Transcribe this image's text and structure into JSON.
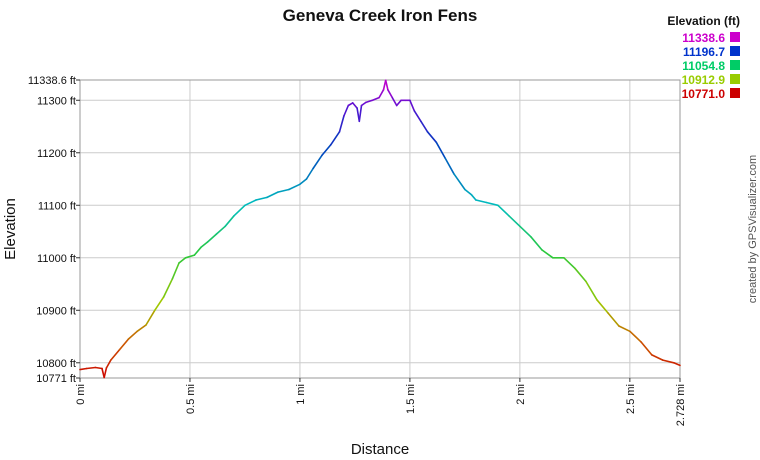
{
  "chart_data": {
    "type": "line",
    "title": "Geneva Creek Iron Fens",
    "xlabel": "Distance",
    "ylabel": "Elevation",
    "xlim": [
      0,
      2.728
    ],
    "ylim": [
      10771.0,
      11338.6
    ],
    "x_ticks": [
      {
        "value": 0,
        "label": "0 mi"
      },
      {
        "value": 0.5,
        "label": "0.5 mi"
      },
      {
        "value": 1,
        "label": "1 mi"
      },
      {
        "value": 1.5,
        "label": "1.5 mi"
      },
      {
        "value": 2,
        "label": "2 mi"
      },
      {
        "value": 2.5,
        "label": "2.5 mi"
      },
      {
        "value": 2.728,
        "label": "2.728 mi"
      }
    ],
    "y_ticks": [
      {
        "value": 10771.0,
        "label": "10771 ft"
      },
      {
        "value": 10800,
        "label": "10800 ft"
      },
      {
        "value": 10900,
        "label": "10900 ft"
      },
      {
        "value": 11000,
        "label": "11000 ft"
      },
      {
        "value": 11100,
        "label": "11100 ft"
      },
      {
        "value": 11200,
        "label": "11200 ft"
      },
      {
        "value": 11300,
        "label": "11300 ft"
      },
      {
        "value": 11338.6,
        "label": "11338.6 ft"
      }
    ],
    "grid": true,
    "legend": {
      "title": "Elevation (ft)",
      "placement": "top-right",
      "entries": [
        {
          "label": "11338.6",
          "color": "#cc00cc"
        },
        {
          "label": "11196.7",
          "color": "#0033cc"
        },
        {
          "label": "11054.8",
          "color": "#00cc66"
        },
        {
          "label": "10912.9",
          "color": "#99cc00"
        },
        {
          "label": "10771.0",
          "color": "#cc0000"
        }
      ]
    },
    "credit": "created by GPSVisualizer.com",
    "series": [
      {
        "x": [
          0,
          0.03,
          0.07,
          0.1,
          0.11,
          0.12,
          0.14,
          0.18,
          0.22,
          0.26,
          0.3,
          0.34,
          0.38,
          0.42,
          0.45,
          0.48,
          0.52,
          0.55,
          0.58,
          0.62,
          0.66,
          0.7,
          0.75,
          0.8,
          0.85,
          0.9,
          0.95,
          1.0,
          1.03,
          1.06,
          1.1,
          1.14,
          1.18,
          1.2,
          1.22,
          1.24,
          1.26,
          1.27,
          1.28,
          1.3,
          1.33,
          1.36,
          1.38,
          1.39,
          1.4,
          1.42,
          1.44,
          1.46,
          1.48,
          1.5,
          1.52,
          1.55,
          1.58,
          1.62,
          1.66,
          1.7,
          1.75,
          1.78,
          1.8,
          1.85,
          1.9,
          1.95,
          2.0,
          2.05,
          2.1,
          2.15,
          2.2,
          2.25,
          2.3,
          2.35,
          2.4,
          2.45,
          2.5,
          2.55,
          2.6,
          2.65,
          2.7,
          2.728
        ],
        "y": [
          10787,
          10789,
          10791,
          10789,
          10772,
          10790,
          10805,
          10825,
          10845,
          10860,
          10872,
          10900,
          10925,
          10960,
          10990,
          11000,
          11005,
          11020,
          11030,
          11045,
          11060,
          11080,
          11100,
          11110,
          11115,
          11125,
          11130,
          11140,
          11150,
          11170,
          11195,
          11215,
          11240,
          11270,
          11290,
          11295,
          11285,
          11260,
          11290,
          11296,
          11300,
          11305,
          11320,
          11338,
          11320,
          11305,
          11290,
          11300,
          11300,
          11300,
          11280,
          11260,
          11240,
          11220,
          11190,
          11160,
          11130,
          11120,
          11110,
          11105,
          11100,
          11080,
          11060,
          11040,
          11015,
          11000,
          11000,
          10980,
          10955,
          10920,
          10895,
          10870,
          10860,
          10840,
          10815,
          10805,
          10800,
          10795
        ]
      }
    ]
  }
}
